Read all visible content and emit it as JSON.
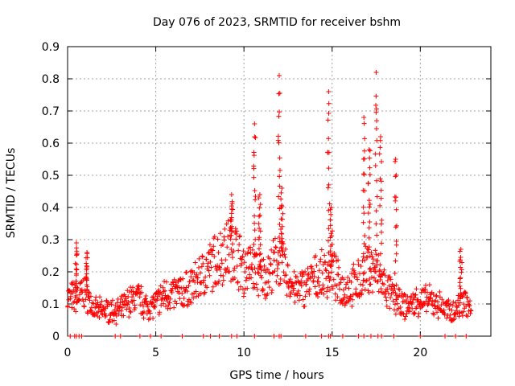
{
  "chart_data": {
    "type": "scatter",
    "title": "Day 076 of 2023, SRMTID for receiver bshm",
    "xlabel": "GPS time / hours",
    "ylabel": "SRMTID / TECUs",
    "xlim": [
      0,
      24
    ],
    "ylim": [
      0,
      0.9
    ],
    "x_ticks": [
      0,
      5,
      10,
      15,
      20
    ],
    "y_ticks": [
      0,
      0.1,
      0.2,
      0.3,
      0.4,
      0.5,
      0.6,
      0.7,
      0.8,
      0.9
    ],
    "x_tick_labels": [
      "0",
      "5",
      "10",
      "15",
      "20"
    ],
    "y_tick_labels": [
      "0",
      "0.1",
      "0.2",
      "0.3",
      "0.4",
      "0.5",
      "0.6",
      "0.7",
      "0.8",
      "0.9"
    ],
    "grid": true,
    "marker": "+",
    "series_color": "#ff0000",
    "series": [
      {
        "name": "SRMTID",
        "trend": [
          [
            0.0,
            0.12
          ],
          [
            0.5,
            0.12
          ],
          [
            1.0,
            0.14
          ],
          [
            1.5,
            0.08
          ],
          [
            2.0,
            0.08
          ],
          [
            2.5,
            0.08
          ],
          [
            3.0,
            0.08
          ],
          [
            3.5,
            0.11
          ],
          [
            4.0,
            0.12
          ],
          [
            4.5,
            0.09
          ],
          [
            5.0,
            0.1
          ],
          [
            5.5,
            0.13
          ],
          [
            6.0,
            0.13
          ],
          [
            6.5,
            0.14
          ],
          [
            7.0,
            0.15
          ],
          [
            7.5,
            0.18
          ],
          [
            8.0,
            0.21
          ],
          [
            8.5,
            0.24
          ],
          [
            9.0,
            0.27
          ],
          [
            9.5,
            0.27
          ],
          [
            10.0,
            0.2
          ],
          [
            10.5,
            0.22
          ],
          [
            11.0,
            0.18
          ],
          [
            11.5,
            0.2
          ],
          [
            12.0,
            0.25
          ],
          [
            12.5,
            0.18
          ],
          [
            13.0,
            0.14
          ],
          [
            13.5,
            0.16
          ],
          [
            14.0,
            0.18
          ],
          [
            14.5,
            0.19
          ],
          [
            15.0,
            0.2
          ],
          [
            15.5,
            0.15
          ],
          [
            16.0,
            0.15
          ],
          [
            16.5,
            0.17
          ],
          [
            17.0,
            0.21
          ],
          [
            17.5,
            0.2
          ],
          [
            18.0,
            0.15
          ],
          [
            18.5,
            0.12
          ],
          [
            19.0,
            0.09
          ],
          [
            19.5,
            0.1
          ],
          [
            20.0,
            0.11
          ],
          [
            20.5,
            0.11
          ],
          [
            21.0,
            0.1
          ],
          [
            21.5,
            0.08
          ],
          [
            22.0,
            0.08
          ],
          [
            22.5,
            0.12
          ],
          [
            22.9,
            0.07
          ]
        ],
        "spikes": [
          {
            "x": 10.6,
            "peak": 0.66
          },
          {
            "x": 10.9,
            "peak": 0.44
          },
          {
            "x": 12.0,
            "peak": 0.81
          },
          {
            "x": 12.15,
            "peak": 0.46
          },
          {
            "x": 14.8,
            "peak": 0.76
          },
          {
            "x": 14.95,
            "peak": 0.4
          },
          {
            "x": 16.8,
            "peak": 0.68
          },
          {
            "x": 17.1,
            "peak": 0.58
          },
          {
            "x": 17.5,
            "peak": 0.82
          },
          {
            "x": 17.75,
            "peak": 0.62
          },
          {
            "x": 18.6,
            "peak": 0.55
          },
          {
            "x": 9.3,
            "peak": 0.44
          },
          {
            "x": 0.5,
            "peak": 0.29
          },
          {
            "x": 1.1,
            "peak": 0.26
          },
          {
            "x": 22.3,
            "peak": 0.27
          }
        ],
        "zero_points": [
          0.15,
          0.4,
          0.5,
          0.65,
          0.8,
          2.7,
          3.0,
          4.1,
          4.7,
          5.3,
          6.5,
          7.7,
          8.1,
          8.6,
          9.3,
          9.6,
          10.6,
          11.7,
          12.0,
          12.1,
          13.5,
          14.4,
          14.8,
          14.9,
          15.6,
          16.5,
          16.8,
          17.2,
          17.6,
          17.8,
          18.5,
          20.0,
          21.4,
          22.0,
          22.6
        ]
      }
    ]
  }
}
